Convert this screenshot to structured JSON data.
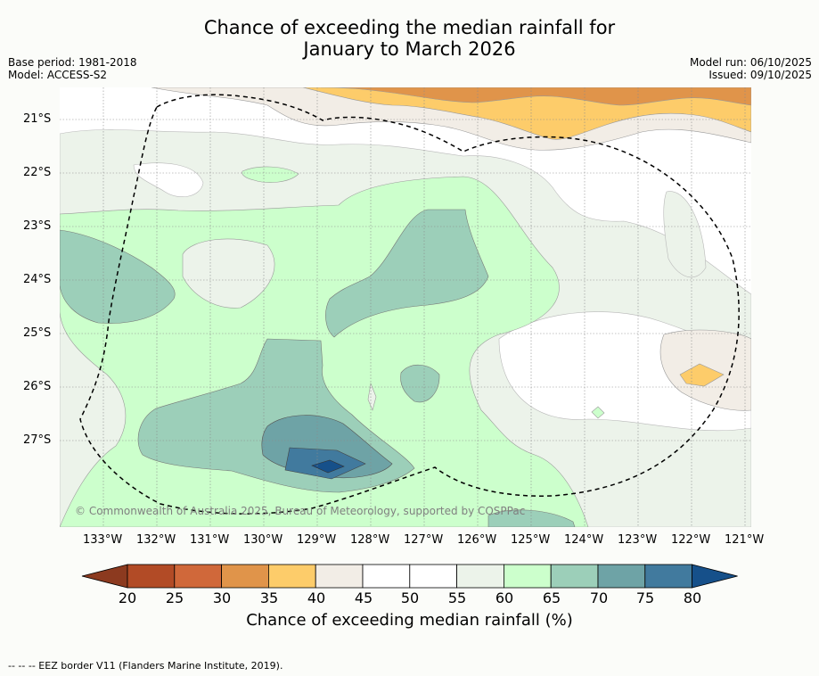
{
  "title": {
    "line1": "Chance of exceeding the median rainfall for",
    "line2": "January to March 2026"
  },
  "meta": {
    "base_period": "Base period: 1981-2018",
    "model": "Model: ACCESS-S2",
    "model_run": "Model run: 06/10/2025",
    "issued": "Issued: 09/10/2025"
  },
  "map": {
    "lat_labels": [
      "21°S",
      "22°S",
      "23°S",
      "24°S",
      "25°S",
      "26°S",
      "27°S"
    ],
    "lon_labels": [
      "133°W",
      "132°W",
      "131°W",
      "130°W",
      "129°W",
      "128°W",
      "127°W",
      "126°W",
      "125°W",
      "124°W",
      "123°W",
      "122°W",
      "121°W"
    ],
    "copyright": "© Commonwealth of Australia 2025, Bureau of Meteorology, supported by COSPPac"
  },
  "colorbar": {
    "ticks": [
      "20",
      "25",
      "30",
      "35",
      "40",
      "45",
      "50",
      "55",
      "60",
      "65",
      "70",
      "75",
      "80"
    ],
    "colors": [
      "#8c3a1f",
      "#b24b26",
      "#d0683a",
      "#e0944a",
      "#fdcc6a",
      "#f2ede6",
      "#ffffff",
      "#ffffff",
      "#ecf3ea",
      "#ccffcc",
      "#9ccfb9",
      "#6ea3a6",
      "#417a9e",
      "#16508a"
    ],
    "title": "Chance of exceeding median rainfall (%)"
  },
  "footer": "--  --  -- EEZ border V11 (Flanders Marine Institute, 2019)."
}
